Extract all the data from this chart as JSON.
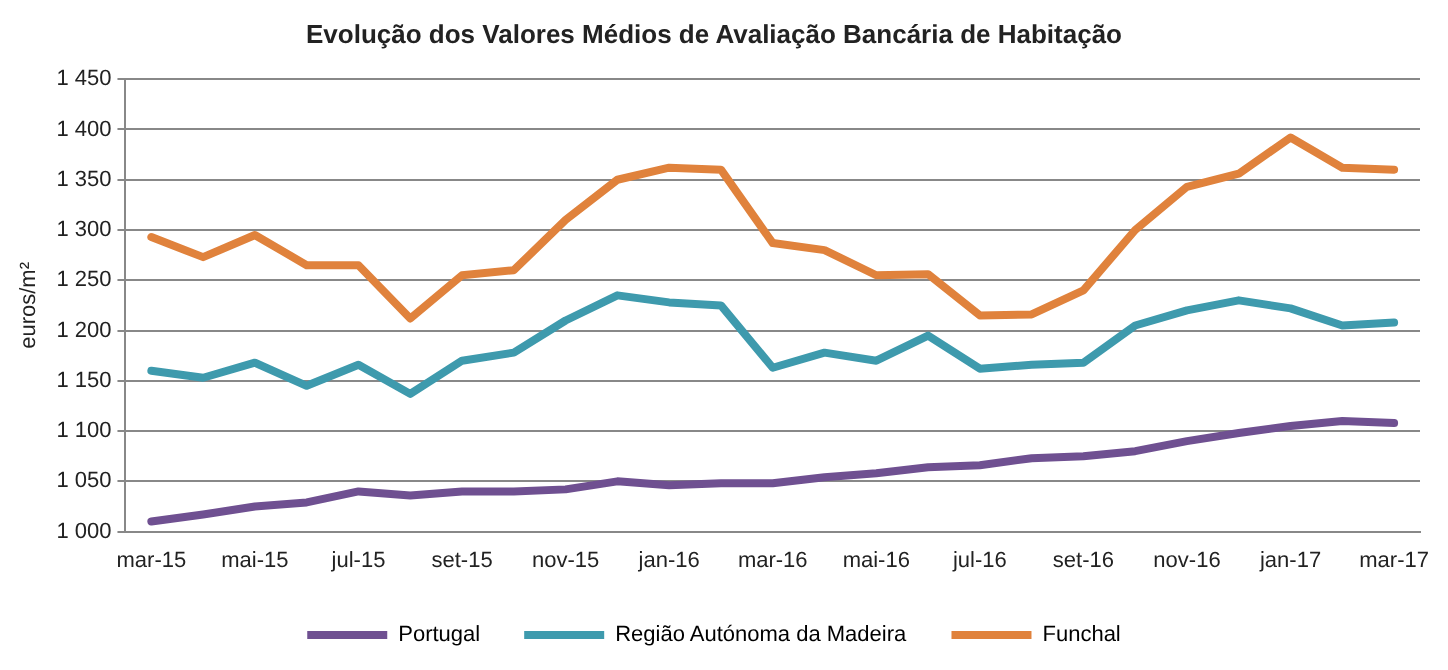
{
  "chart_data": {
    "type": "line",
    "title": "Evolução dos Valores Médios de Avaliação Bancária de Habitação",
    "ylabel": "euros/m²",
    "categories": [
      "mar-15",
      null,
      "mai-15",
      null,
      "jul-15",
      null,
      "set-15",
      null,
      "nov-15",
      null,
      "jan-16",
      null,
      "mar-16",
      null,
      "mai-16",
      null,
      "jul-16",
      null,
      "set-16",
      null,
      "nov-16",
      null,
      "jan-17",
      null,
      "mar-17"
    ],
    "series": [
      {
        "name": "Portugal",
        "color": "#6f5091",
        "values": [
          1010,
          1017,
          1025,
          1029,
          1040,
          1036,
          1040,
          1040,
          1042,
          1050,
          1046,
          1048,
          1048,
          1054,
          1058,
          1064,
          1066,
          1073,
          1075,
          1080,
          1090,
          1098,
          1105,
          1110,
          1108
        ]
      },
      {
        "name": "Região Autónoma da Madeira",
        "color": "#3e9aad",
        "values": [
          1160,
          1153,
          1168,
          1145,
          1166,
          1137,
          1170,
          1178,
          1210,
          1235,
          1228,
          1225,
          1163,
          1178,
          1170,
          1195,
          1162,
          1166,
          1168,
          1205,
          1220,
          1230,
          1222,
          1205,
          1208
        ]
      },
      {
        "name": "Funchal",
        "color": "#e0823c",
        "values": [
          1293,
          1273,
          1295,
          1265,
          1265,
          1212,
          1255,
          1260,
          1310,
          1350,
          1362,
          1360,
          1287,
          1280,
          1255,
          1256,
          1215,
          1216,
          1240,
          1300,
          1343,
          1356,
          1392,
          1362,
          1360
        ]
      }
    ],
    "ylim": [
      1000,
      1450
    ],
    "yticks": [
      {
        "value": 1000,
        "label": "1 000"
      },
      {
        "value": 1050,
        "label": "1 050"
      },
      {
        "value": 1100,
        "label": "1 100"
      },
      {
        "value": 1150,
        "label": "1 150"
      },
      {
        "value": 1200,
        "label": "1 200"
      },
      {
        "value": 1250,
        "label": "1 250"
      },
      {
        "value": 1300,
        "label": "1 300"
      },
      {
        "value": 1350,
        "label": "1 350"
      },
      {
        "value": 1400,
        "label": "1 400"
      },
      {
        "value": 1450,
        "label": "1 450"
      }
    ],
    "grid": "y",
    "legend": "bottom",
    "marker": "none",
    "line_style": "solid"
  }
}
